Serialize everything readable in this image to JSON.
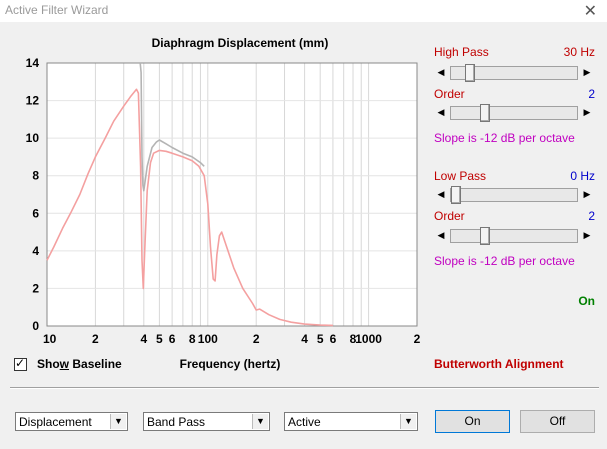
{
  "window": {
    "title": "Active Filter Wizard",
    "close_glyph": "✕"
  },
  "chart_data": {
    "type": "line",
    "title": "Diaphragm Displacement (mm)",
    "xlabel": "Frequency (hertz)",
    "ylabel": "",
    "xscale": "log",
    "xlim": [
      10,
      2000
    ],
    "ylim": [
      0,
      14
    ],
    "yticks": [
      0,
      2,
      4,
      6,
      8,
      10,
      12,
      14
    ],
    "xtick_labels": [
      {
        "f": 10,
        "label": "10"
      },
      {
        "f": 20,
        "label": "2"
      },
      {
        "f": 40,
        "label": "4"
      },
      {
        "f": 50,
        "label": "5"
      },
      {
        "f": 60,
        "label": "6"
      },
      {
        "f": 80,
        "label": "8"
      },
      {
        "f": 100,
        "label": "100"
      },
      {
        "f": 200,
        "label": "2"
      },
      {
        "f": 400,
        "label": "4"
      },
      {
        "f": 500,
        "label": "5"
      },
      {
        "f": 600,
        "label": "6"
      },
      {
        "f": 800,
        "label": "8"
      },
      {
        "f": 1000,
        "label": "1000"
      },
      {
        "f": 2000,
        "label": "2"
      }
    ],
    "grid": true,
    "series": [
      {
        "color": "#b4b4b4",
        "points": [
          [
            38,
            14
          ],
          [
            38.5,
            13.5
          ],
          [
            39,
            9
          ],
          [
            39.5,
            7.5
          ],
          [
            40,
            7.2
          ],
          [
            42,
            8.5
          ],
          [
            45,
            9.5
          ],
          [
            48,
            9.8
          ],
          [
            50,
            9.9
          ],
          [
            55,
            9.7
          ],
          [
            60,
            9.5
          ],
          [
            70,
            9.2
          ],
          [
            80,
            9.0
          ],
          [
            90,
            8.7
          ],
          [
            95,
            8.5
          ]
        ]
      },
      {
        "color": "#f4a0a0",
        "points": [
          [
            10,
            3.5
          ],
          [
            11,
            4.2
          ],
          [
            12.5,
            5.2
          ],
          [
            14,
            6.0
          ],
          [
            16,
            7.0
          ],
          [
            18,
            8.1
          ],
          [
            20,
            9.0
          ],
          [
            23,
            10.0
          ],
          [
            26,
            10.9
          ],
          [
            30,
            11.7
          ],
          [
            33,
            12.2
          ],
          [
            36,
            12.6
          ],
          [
            37,
            12.4
          ],
          [
            38.2,
            8.5
          ],
          [
            39,
            3.5
          ],
          [
            39.7,
            2.0
          ],
          [
            40.5,
            4.0
          ],
          [
            42,
            7.2
          ],
          [
            44,
            8.7
          ],
          [
            46,
            9.2
          ],
          [
            50,
            9.35
          ],
          [
            55,
            9.3
          ],
          [
            60,
            9.2
          ],
          [
            70,
            9.0
          ],
          [
            80,
            8.8
          ],
          [
            88,
            8.5
          ],
          [
            95,
            8.0
          ],
          [
            100,
            6.5
          ],
          [
            104,
            4.2
          ],
          [
            108,
            2.5
          ],
          [
            111,
            2.4
          ],
          [
            114,
            3.8
          ],
          [
            118,
            4.8
          ],
          [
            122,
            5.0
          ],
          [
            130,
            4.3
          ],
          [
            145,
            3.1
          ],
          [
            165,
            2.0
          ],
          [
            190,
            1.2
          ],
          [
            200,
            0.85
          ],
          [
            210,
            0.9
          ],
          [
            240,
            0.6
          ],
          [
            280,
            0.35
          ],
          [
            330,
            0.2
          ],
          [
            400,
            0.1
          ],
          [
            500,
            0.05
          ],
          [
            600,
            0.03
          ]
        ]
      }
    ]
  },
  "controls": {
    "show_baseline": {
      "label_pre": "Sho",
      "label_u": "w",
      "label_post": " Baseline",
      "checked_glyph": "✓"
    },
    "high_pass": {
      "label": "High Pass",
      "value": "30 Hz",
      "order_label": "Order",
      "order_value": "2",
      "slope_text": "Slope is -12 dB per octave",
      "freq_pos": 0.12,
      "order_pos": 0.25
    },
    "low_pass": {
      "label": "Low Pass",
      "value": "0 Hz",
      "order_label": "Order",
      "order_value": "2",
      "slope_text": "Slope is -12 dB per octave",
      "freq_pos": 0.0,
      "order_pos": 0.25
    },
    "state_text": "On",
    "alignment": "Butterworth Alignment",
    "arrow_left": "◀",
    "arrow_right": "▶",
    "dropdown_glyph": "▼",
    "selects": {
      "mode": "Displacement",
      "filter": "Band Pass",
      "type": "Active"
    },
    "buttons": {
      "on": "On",
      "off": "Off"
    }
  }
}
